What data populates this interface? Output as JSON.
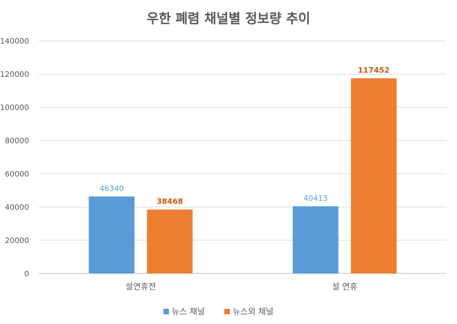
{
  "chart_data": {
    "type": "bar",
    "title": "우한 폐렴 채널별 정보량 추이",
    "categories": [
      "설연휴전",
      "설 연휴"
    ],
    "series": [
      {
        "name": "뉴스 채널",
        "values": [
          46340,
          40413
        ],
        "color": "#5B9BD5",
        "label_color": "#5B9BD5",
        "label_bold": false
      },
      {
        "name": "뉴스외 채널",
        "values": [
          38468,
          117452
        ],
        "color": "#ED7D31",
        "label_color": "#C55A11",
        "label_bold": true
      }
    ],
    "ylim": [
      0,
      140000
    ],
    "yticks": [
      "0",
      "20000",
      "40000",
      "60000",
      "80000",
      "100000",
      "120000",
      "140000"
    ],
    "grid": true,
    "legend_position": "bottom"
  }
}
